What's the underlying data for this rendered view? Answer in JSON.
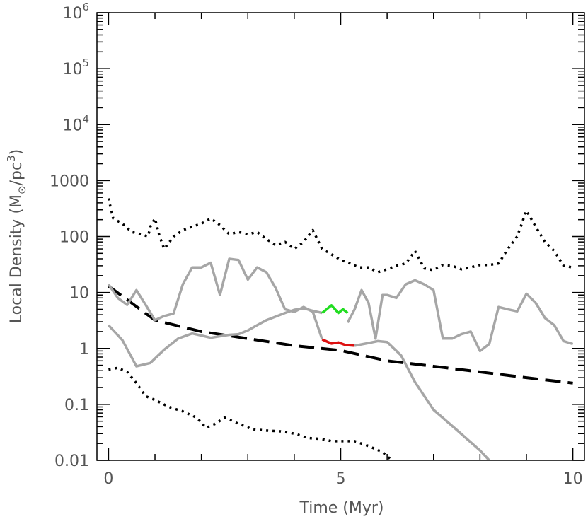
{
  "chart_data": {
    "type": "line",
    "xlabel": "Time (Myr)",
    "ylabel": {
      "prefix": "Local Density (M",
      "subscript": "⊙",
      "middle": "/pc",
      "superscript": "3",
      "suffix": ")"
    },
    "xlim": [
      -0.25,
      10.25
    ],
    "ylim": [
      0.01,
      1000000
    ],
    "yscale": "log",
    "grid": false,
    "x_ticks": [
      {
        "value": 0,
        "label": "0"
      },
      {
        "value": 5,
        "label": "5"
      },
      {
        "value": 10,
        "label": "10"
      }
    ],
    "y_ticks": [
      {
        "value": 0.01,
        "label": "0.01"
      },
      {
        "value": 0.1,
        "label": "0.1"
      },
      {
        "value": 1,
        "label": "1"
      },
      {
        "value": 10,
        "label": "10"
      },
      {
        "value": 100,
        "label": "100"
      },
      {
        "value": 1000,
        "label": "1000"
      },
      {
        "value": 10000,
        "base": "10",
        "exp": "4"
      },
      {
        "value": 100000,
        "base": "10",
        "exp": "5"
      },
      {
        "value": 1000000,
        "base": "10",
        "exp": "6"
      }
    ],
    "series": [
      {
        "key": "upper-dotted",
        "color": "#000000",
        "style": "dotted",
        "x": [
          0,
          0.1,
          0.3,
          0.5,
          0.7,
          0.85,
          0.9,
          1.0,
          1.1,
          1.2,
          1.4,
          1.6,
          1.8,
          2.0,
          2.2,
          2.4,
          2.6,
          2.8,
          3.0,
          3.2,
          3.4,
          3.6,
          3.8,
          4.0,
          4.2,
          4.4,
          4.6,
          4.8,
          5.0,
          5.2,
          5.4,
          5.6,
          5.8,
          6.0,
          6.2,
          6.4,
          6.6,
          6.8,
          7.0,
          7.2,
          7.4,
          7.6,
          7.8,
          8.0,
          8.2,
          8.4,
          8.6,
          8.8,
          9.0,
          9.2,
          9.4,
          9.6,
          9.8,
          10.0
        ],
        "y": [
          480,
          210,
          170,
          120,
          110,
          100,
          150,
          210,
          100,
          60,
          100,
          130,
          150,
          170,
          210,
          160,
          110,
          120,
          110,
          120,
          90,
          70,
          80,
          60,
          80,
          130,
          60,
          48,
          38,
          33,
          28,
          28,
          23,
          26,
          30,
          33,
          55,
          27,
          25,
          31,
          30,
          26,
          28,
          31,
          31,
          33,
          60,
          100,
          290,
          150,
          80,
          55,
          30,
          28
        ]
      },
      {
        "key": "lower-dotted",
        "color": "#000000",
        "style": "dotted",
        "x": [
          0,
          0.2,
          0.4,
          0.6,
          0.8,
          1.0,
          1.3,
          1.6,
          1.9,
          2.1,
          2.3,
          2.5,
          2.8,
          3.1,
          3.4,
          3.7,
          4.0,
          4.3,
          4.6,
          4.8,
          5.0,
          5.3,
          5.6,
          5.9,
          6.1
        ],
        "y": [
          0.42,
          0.45,
          0.38,
          0.24,
          0.14,
          0.12,
          0.09,
          0.075,
          0.058,
          0.038,
          0.045,
          0.058,
          0.045,
          0.036,
          0.034,
          0.033,
          0.03,
          0.025,
          0.024,
          0.022,
          0.022,
          0.022,
          0.018,
          0.014,
          0.01
        ]
      },
      {
        "key": "dashed-fit",
        "color": "#000000",
        "style": "dashed",
        "x": [
          0,
          1,
          2,
          3,
          4,
          5,
          6,
          7,
          8,
          9,
          10
        ],
        "y": [
          13,
          3.2,
          2.0,
          1.5,
          1.12,
          0.92,
          0.6,
          0.48,
          0.38,
          0.3,
          0.24
        ]
      },
      {
        "key": "grey-a",
        "color": "#a6a6a6",
        "style": "solid",
        "x": [
          0,
          0.3,
          0.6,
          0.9,
          1.2,
          1.5,
          1.8,
          2.0,
          2.2,
          2.4,
          2.6,
          2.8,
          3.0,
          3.2,
          3.4,
          3.6,
          3.8,
          4.0,
          4.2,
          4.4,
          4.6
        ],
        "y": [
          2.6,
          1.4,
          0.48,
          0.55,
          0.95,
          1.5,
          1.85,
          1.7,
          1.55,
          1.65,
          1.75,
          1.8,
          2.1,
          2.6,
          3.2,
          3.7,
          4.3,
          4.9,
          5.2,
          4.7,
          4.3
        ]
      },
      {
        "key": "green",
        "color": "#22dd22",
        "style": "solid",
        "x": [
          4.6,
          4.8,
          4.95,
          5.05,
          5.15
        ],
        "y": [
          4.3,
          5.9,
          4.3,
          5.0,
          4.3
        ]
      },
      {
        "key": "grey-b",
        "color": "#a6a6a6",
        "style": "solid",
        "x": [
          5.15,
          5.3,
          5.45,
          5.6,
          5.75,
          5.9,
          6.0,
          6.2,
          6.4,
          6.6,
          6.8,
          7.0,
          7.2,
          7.4,
          7.6,
          7.8,
          8.0,
          8.2,
          8.4,
          8.6,
          8.8,
          9.0,
          9.2,
          9.4,
          9.6,
          9.8,
          10.0
        ],
        "y": [
          2.9,
          5.0,
          11,
          6.5,
          1.5,
          9,
          9,
          8,
          14,
          16.5,
          14,
          11,
          1.5,
          1.5,
          1.8,
          2.0,
          0.9,
          1.2,
          5.5,
          5.0,
          4.6,
          9.5,
          6.5,
          3.5,
          2.6,
          1.35,
          1.2
        ]
      },
      {
        "key": "grey-c",
        "color": "#a6a6a6",
        "style": "solid",
        "x": [
          0,
          0.2,
          0.4,
          0.6,
          0.8,
          1.0,
          1.2,
          1.4,
          1.6,
          1.8,
          2.0,
          2.2,
          2.4,
          2.6,
          2.8,
          3.0,
          3.2,
          3.4,
          3.6,
          3.8,
          4.0,
          4.2,
          4.4,
          4.6
        ],
        "y": [
          14,
          8,
          6,
          11,
          6,
          3.2,
          3.8,
          4.2,
          14,
          28,
          28,
          34,
          9,
          40,
          38,
          17,
          28,
          23,
          12,
          5,
          4.5,
          5.5,
          4.5,
          1.45
        ]
      },
      {
        "key": "red",
        "color": "#dd1111",
        "style": "solid",
        "x": [
          4.6,
          4.8,
          4.95,
          5.1,
          5.3
        ],
        "y": [
          1.45,
          1.22,
          1.28,
          1.15,
          1.12
        ]
      },
      {
        "key": "grey-d",
        "color": "#a6a6a6",
        "style": "solid",
        "x": [
          5.3,
          5.6,
          5.8,
          6.0,
          6.3,
          6.6,
          7.0,
          7.5,
          8.0,
          8.2
        ],
        "y": [
          1.12,
          1.25,
          1.35,
          1.3,
          0.75,
          0.25,
          0.08,
          0.035,
          0.015,
          0.01
        ]
      }
    ]
  }
}
